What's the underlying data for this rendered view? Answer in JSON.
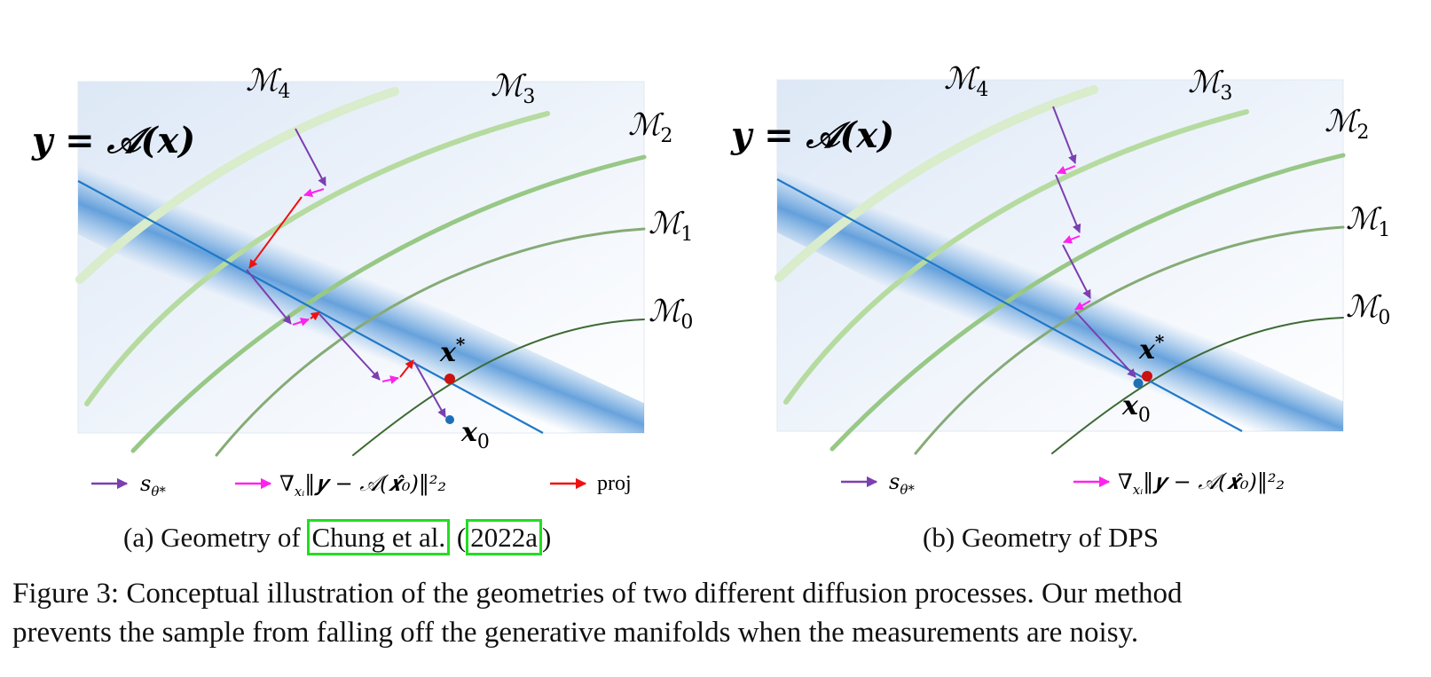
{
  "panels": [
    {
      "id": "a",
      "equation": "𝒚 = 𝒜(𝒙)",
      "manifolds": [
        "ℳ",
        "ℳ",
        "ℳ",
        "ℳ",
        "ℳ"
      ],
      "manifold_subscripts": [
        "4",
        "3",
        "2",
        "1",
        "0"
      ],
      "point_star": "𝒙",
      "point_star_sup": "*",
      "point_zero": "𝒙",
      "point_zero_sub": "0",
      "legend": {
        "score_label": "s",
        "score_sub": "θ*",
        "grad_label": "∇",
        "grad_sub": "xᵢ",
        "grad_rest": "‖𝒚 − 𝒜(𝒙̂₀)‖²₂",
        "proj_label": "proj"
      }
    },
    {
      "id": "b",
      "equation": "𝒚 = 𝒜(𝒙)",
      "manifolds": [
        "ℳ",
        "ℳ",
        "ℳ",
        "ℳ",
        "ℳ"
      ],
      "manifold_subscripts": [
        "4",
        "3",
        "2",
        "1",
        "0"
      ],
      "point_star": "𝒙",
      "point_star_sup": "*",
      "point_zero": "𝒙",
      "point_zero_sub": "0",
      "legend": {
        "score_label": "s",
        "score_sub": "θ*",
        "grad_label": "∇",
        "grad_sub": "xᵢ",
        "grad_rest": "‖𝒚 − 𝒜(𝒙̂₀)‖²₂"
      }
    }
  ],
  "subcaptions": {
    "a_prefix": "(a) Geometry of ",
    "a_cite_author": "Chung et al.",
    "a_paren_open": " (",
    "a_cite_year": "2022a",
    "a_paren_close": ")",
    "b": "(b) Geometry of DPS"
  },
  "caption": {
    "line1": "Figure 3: Conceptual illustration of the geometries of two different diffusion processes. Our method",
    "line2": "prevents the sample from falling off the generative manifolds when the measurements are noisy."
  },
  "colors": {
    "score_arrow": "#7b3fb0",
    "grad_arrow": "#ff22ee",
    "proj_arrow": "#ee1111",
    "measurement_line": "#1f78c8",
    "x_star": "#cc1111",
    "x_zero": "#1f6fb8",
    "cite_box": "#22dd22"
  }
}
